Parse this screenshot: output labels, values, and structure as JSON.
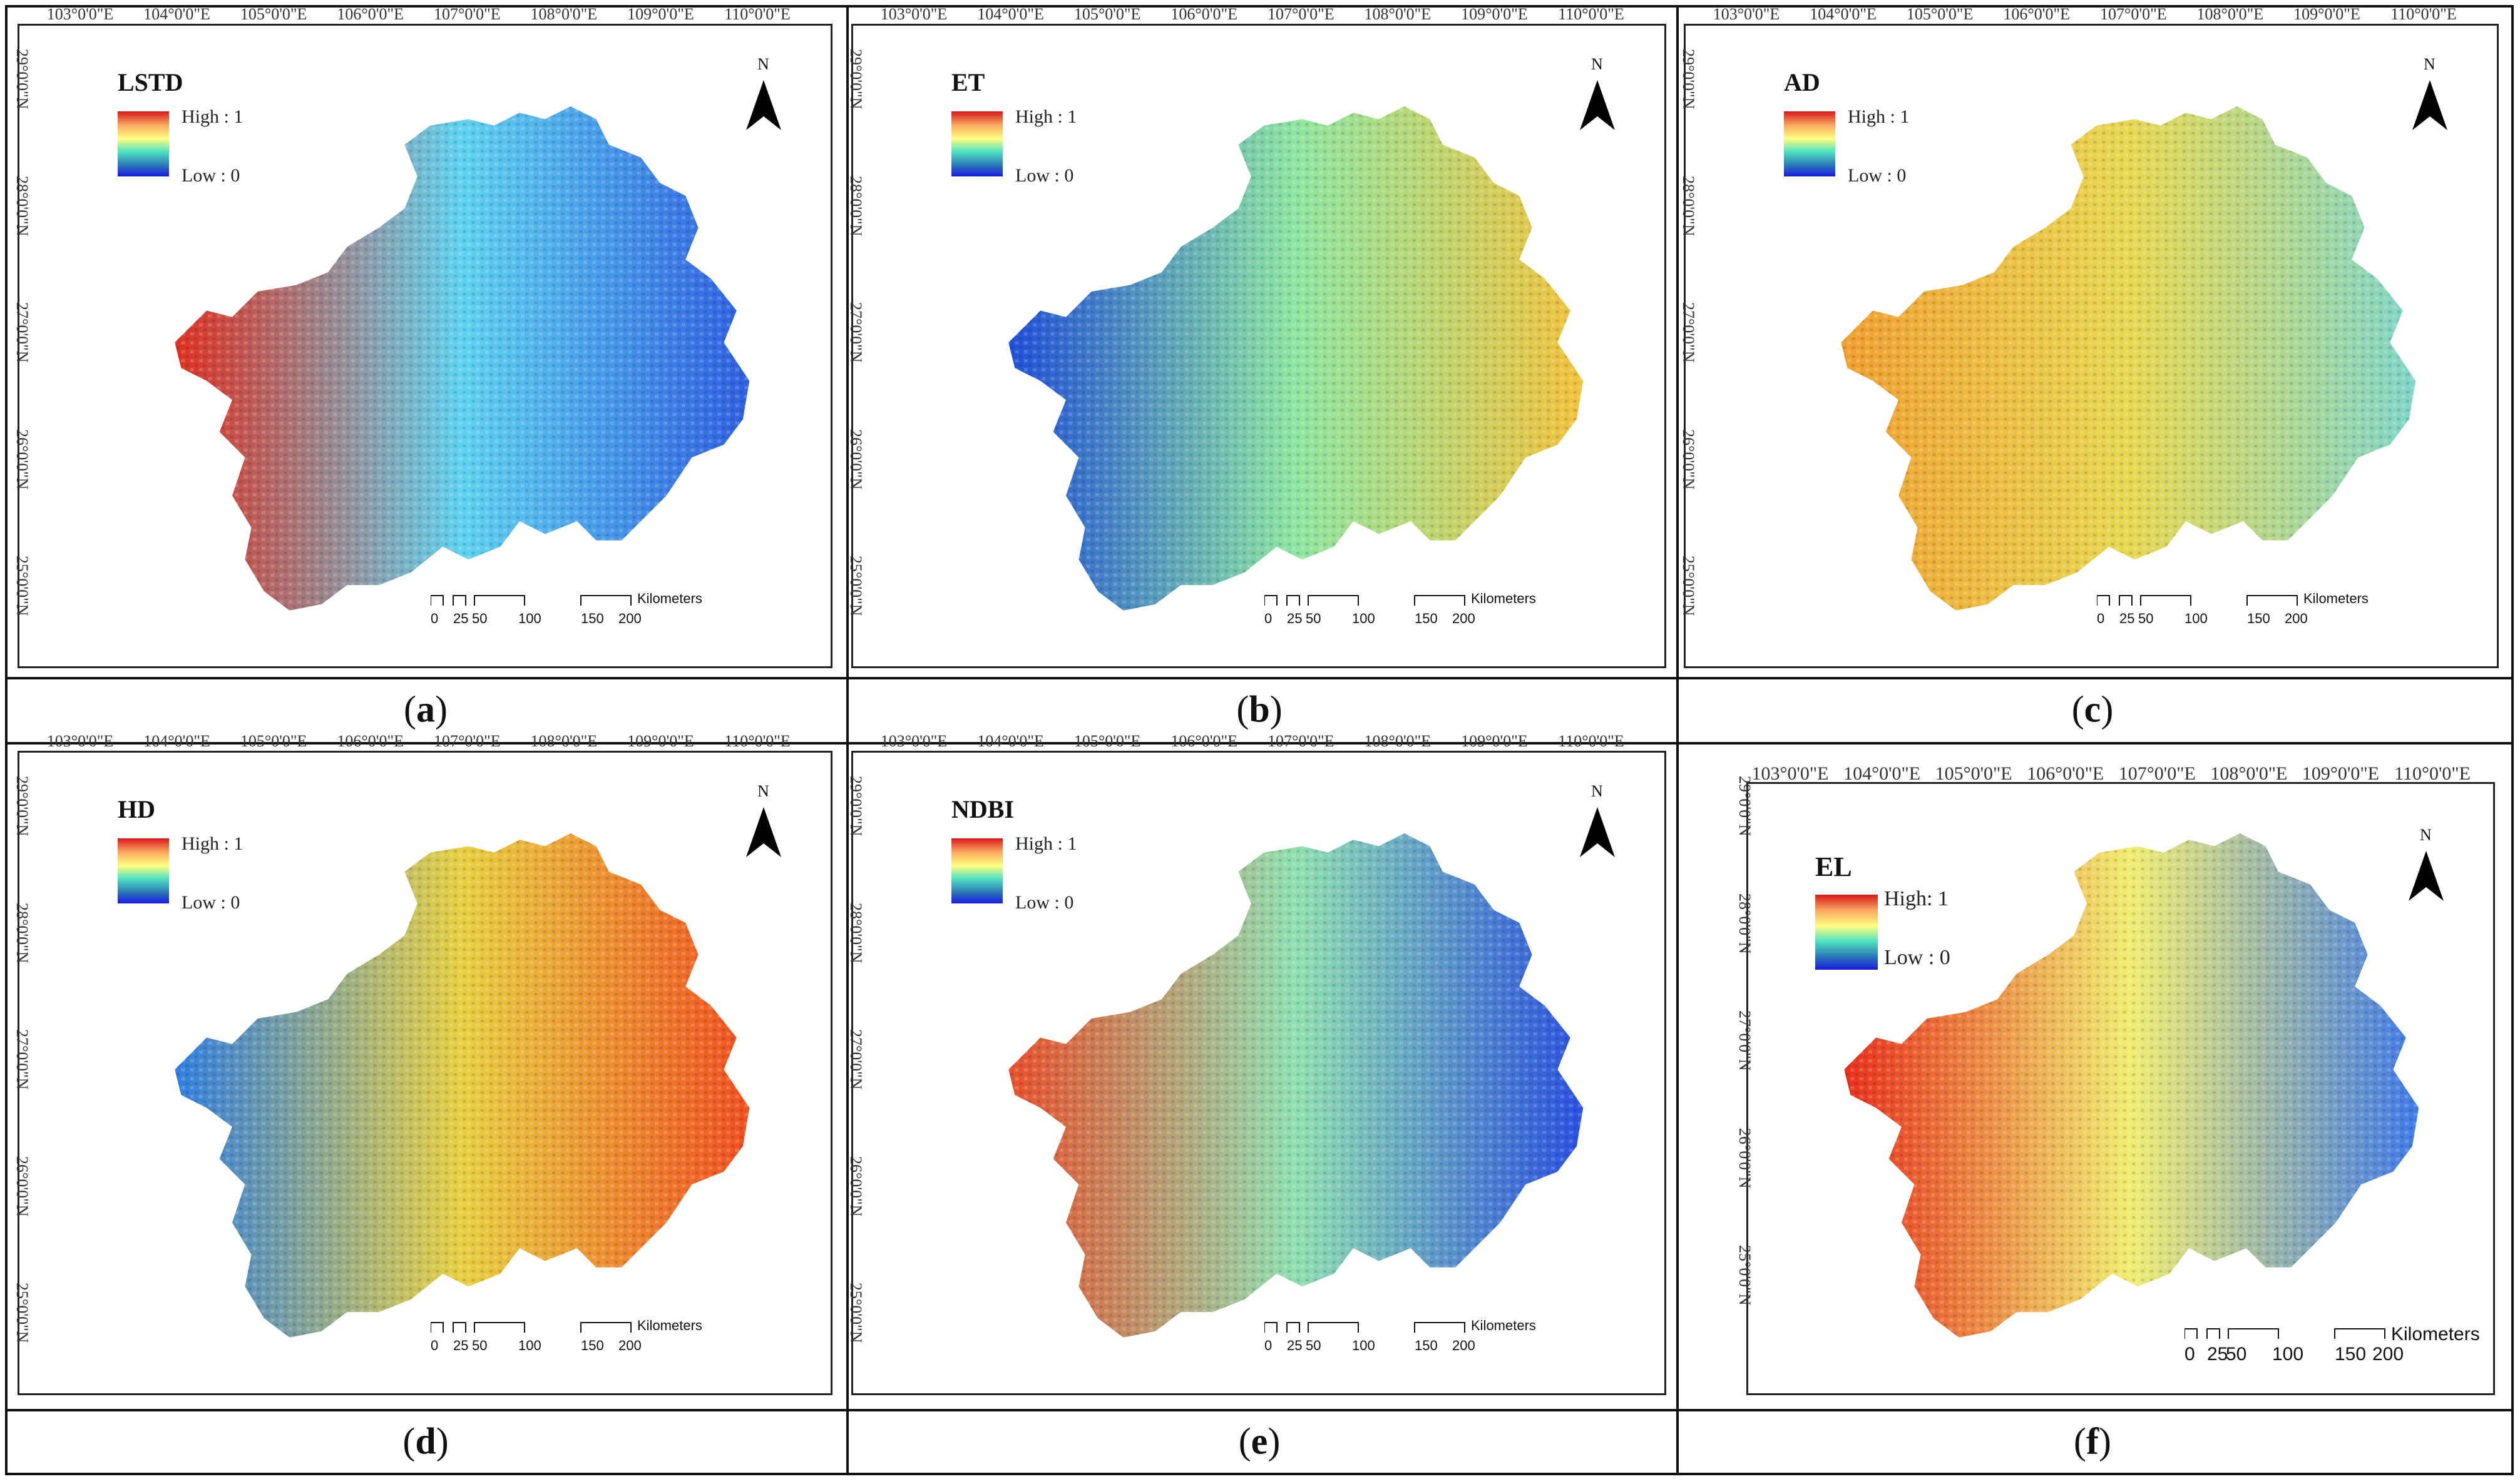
{
  "lon_ticks": [
    "103°0'0\"E",
    "104°0'0\"E",
    "105°0'0\"E",
    "106°0'0\"E",
    "107°0'0\"E",
    "108°0'0\"E",
    "109°0'0\"E",
    "110°0'0\"E"
  ],
  "lat_ticks": [
    "29°0'0\"N",
    "28°0'0\"N",
    "27°0'0\"N",
    "26°0'0\"N",
    "25°0'0\"N"
  ],
  "legend": {
    "high": "High : 1",
    "low": "Low : 0",
    "high_f": "High: 1",
    "low_f": "Low : 0"
  },
  "north_label": "N",
  "scale": {
    "labels": [
      "0",
      "25",
      "50",
      "100",
      "150",
      "200"
    ],
    "unit": "Kilometers"
  },
  "panels": [
    {
      "title": "LSTD",
      "letter": "a",
      "colors": {
        "west": "#e0301e",
        "center": "#5fd3ef",
        "east": "#2f5fe0"
      }
    },
    {
      "title": "ET",
      "letter": "b",
      "colors": {
        "west": "#1f4fd8",
        "center": "#8ee6a0",
        "east": "#f2c23a"
      }
    },
    {
      "title": "AD",
      "letter": "c",
      "colors": {
        "west": "#f0a030",
        "center": "#e8d850",
        "east": "#7fd6c8"
      }
    },
    {
      "title": "HD",
      "letter": "d",
      "colors": {
        "west": "#2f7fe0",
        "center": "#e8d040",
        "east": "#f05020"
      }
    },
    {
      "title": "NDBI",
      "letter": "e",
      "colors": {
        "west": "#e8502a",
        "center": "#8fe0b0",
        "east": "#2a50e0"
      }
    },
    {
      "title": "EL",
      "letter": "f",
      "colors": {
        "west": "#e8301a",
        "center": "#f0ee70",
        "east": "#3f7ae8"
      }
    }
  ]
}
